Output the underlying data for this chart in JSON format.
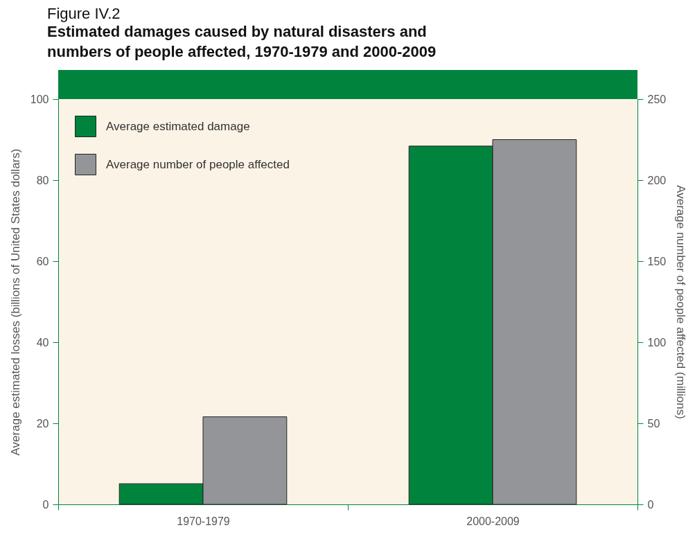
{
  "chart_data": {
    "type": "bar",
    "title": "Figure IV.2",
    "subtitle": "Estimated damages caused by natural disasters and\nnumbers of people affected, 1970-1979 and 2000-2009",
    "ylabel": "Average estimated losses (billions of United States dollars)",
    "y2label": "Average number of people affected (millions)",
    "categories": [
      "1970-1979",
      "2000-2009"
    ],
    "series": [
      {
        "name": "Average estimated damage",
        "color": "#00843d",
        "values": [
          5.1,
          88.4
        ]
      },
      {
        "name": "Average number of people affected",
        "color": "#939598",
        "values": [
          54,
          225
        ],
        "axis": "y2"
      }
    ],
    "ylim": [
      0,
      100
    ],
    "yticks": [
      0,
      20,
      40,
      60,
      80,
      100
    ],
    "y2lim": [
      0,
      250
    ],
    "y2ticks": [
      0,
      50,
      100,
      150,
      200,
      250
    ],
    "grid": false,
    "legend": "top left"
  }
}
